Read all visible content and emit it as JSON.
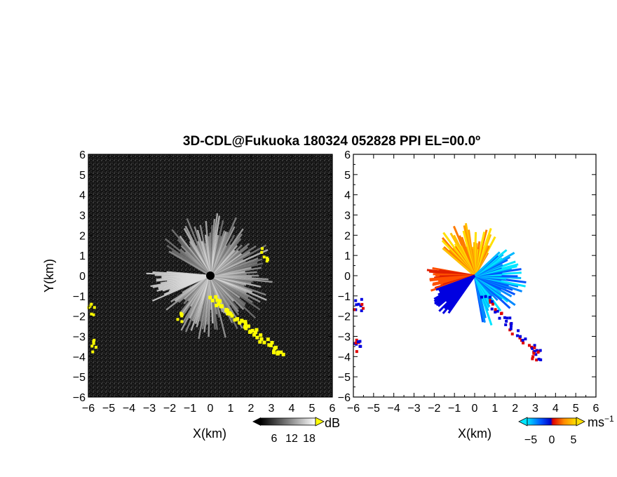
{
  "chart_data": [
    {
      "type": "heatmap",
      "panel": "reflectivity",
      "title": "3D-CDL@Fukuoka 180324 052828 PPI EL=00.0º",
      "xlabel": "X(km)",
      "ylabel": "Y(km)",
      "xlim": [
        -6,
        6
      ],
      "ylim": [
        -6,
        6
      ],
      "xticks": [
        -6,
        -5,
        -4,
        -3,
        -2,
        -1,
        0,
        1,
        2,
        3,
        4,
        5,
        6
      ],
      "yticks": [
        -6,
        -5,
        -4,
        -3,
        -2,
        -1,
        0,
        1,
        2,
        3,
        4,
        5,
        6
      ],
      "background": "#141414",
      "highlight_color": "#ffff00",
      "colorbar": {
        "unit": "dB",
        "ticks": [
          6,
          12,
          18
        ],
        "colors": [
          "#000000",
          "#ffffff"
        ]
      },
      "features": [
        {
          "kind": "radial-fan",
          "center": [
            0,
            0
          ],
          "range_km": 3
        },
        {
          "kind": "yellow-echo",
          "x": -5.9,
          "y": -1.6
        },
        {
          "kind": "yellow-echo",
          "x": -5.8,
          "y": -3.4
        },
        {
          "kind": "yellow-echo",
          "x": -1.5,
          "y": -2.1
        },
        {
          "kind": "yellow-echo",
          "x": 2.6,
          "y": 1.1
        },
        {
          "kind": "yellow-echo-band",
          "from": [
            0,
            -1
          ],
          "to": [
            3.5,
            -3.9
          ]
        }
      ]
    },
    {
      "type": "heatmap",
      "panel": "velocity",
      "xlabel": "X(km)",
      "xlim": [
        -6,
        6
      ],
      "ylim": [
        -6,
        6
      ],
      "xticks": [
        -6,
        -5,
        -4,
        -3,
        -2,
        -1,
        0,
        1,
        2,
        3,
        4,
        5,
        6
      ],
      "yticks": [
        -6,
        -5,
        -4,
        -3,
        -2,
        -1,
        0,
        1,
        2,
        3,
        4,
        5,
        6
      ],
      "colorbar": {
        "unit": "ms",
        "unit_exp": "−1",
        "ticks": [
          -5,
          0,
          5
        ],
        "colors": [
          "#00e5ff",
          "#0055ff",
          "#0000c8",
          "#e00000",
          "#ff8c00",
          "#ffe000"
        ]
      },
      "features": [
        {
          "kind": "warm-fan",
          "center": [
            0,
            0
          ],
          "direction": "north",
          "range_km": 2.7
        },
        {
          "kind": "cool-fan",
          "center": [
            0,
            0
          ],
          "direction": "east",
          "range_km": 2.6
        },
        {
          "kind": "warm-wedge",
          "center": [
            0,
            0
          ],
          "direction": "west",
          "range_km": 2.2
        },
        {
          "kind": "mixed-echo",
          "x": -5.8,
          "y": -1.4
        },
        {
          "kind": "mixed-echo",
          "x": -5.8,
          "y": -3.4
        },
        {
          "kind": "mixed-echo",
          "x": 3.0,
          "y": -3.8
        }
      ]
    }
  ],
  "figure": {
    "title": "3D-CDL@Fukuoka 180324 052828 PPI EL=00.0º",
    "left_panel": {
      "xlabel": "X(km)",
      "ylabel": "Y(km)",
      "cb_unit": "dB",
      "cb_ticks": [
        "6",
        "12",
        "18"
      ]
    },
    "right_panel": {
      "xlabel": "X(km)",
      "cb_unit": "ms",
      "cb_unit_exp": "−1",
      "cb_ticks": [
        "−5",
        "0",
        "5"
      ]
    }
  }
}
